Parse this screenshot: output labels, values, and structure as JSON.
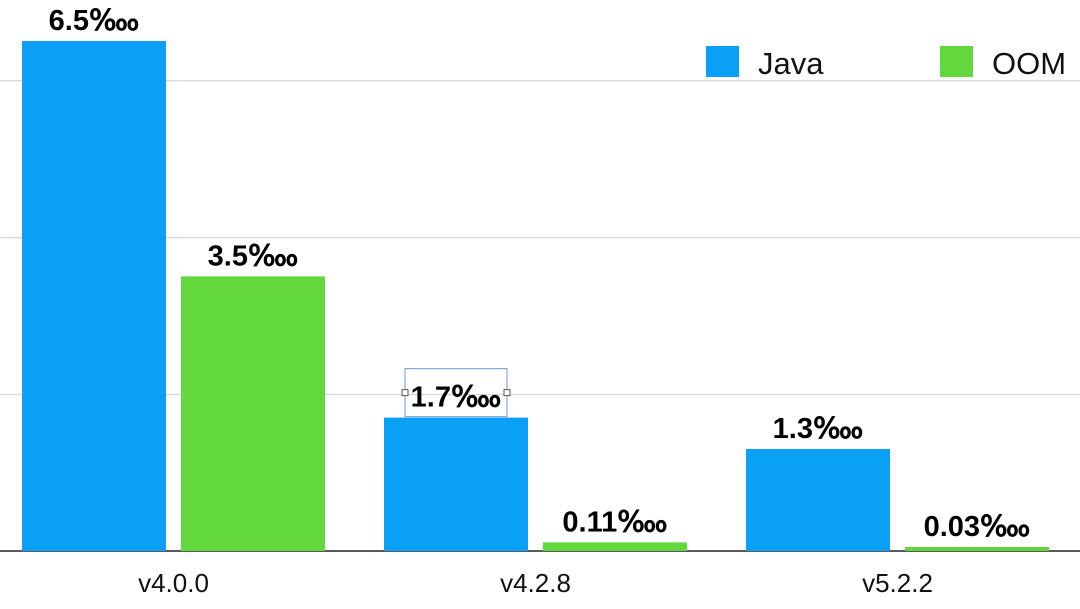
{
  "chart_data": {
    "type": "bar",
    "categories": [
      "v4.0.0",
      "v4.2.8",
      "v5.2.2"
    ],
    "series": [
      {
        "name": "Java",
        "color": "#0aa0f5",
        "values": [
          6.5,
          1.7,
          1.3
        ],
        "labels": [
          "6.5‱",
          "1.7‱",
          "1.3‱"
        ]
      },
      {
        "name": "OOM",
        "color": "#62d83d",
        "values": [
          3.5,
          0.11,
          0.03
        ],
        "labels": [
          "3.5‱",
          "0.11‱",
          "0.03‱"
        ]
      }
    ],
    "title": "",
    "xlabel": "",
    "ylabel": "",
    "ylim": [
      0,
      8
    ],
    "grid": true,
    "legend_position": "top-right",
    "selected_label": "1.7‱"
  }
}
